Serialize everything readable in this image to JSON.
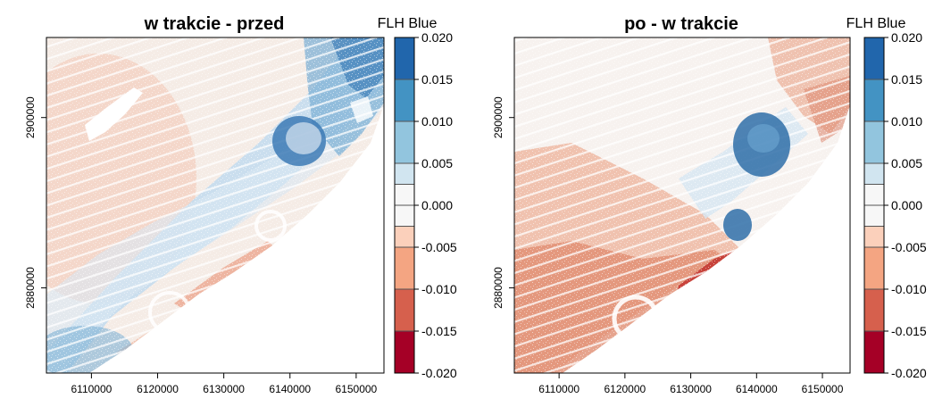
{
  "chart_data": [
    {
      "type": "heatmap",
      "title": "w trakcie - przed",
      "legend_title": "FLH Blue",
      "x_ticks": [
        "6110000",
        "6120000",
        "6130000",
        "6140000",
        "6150000"
      ],
      "x_tick_values": [
        6110000,
        6120000,
        6130000,
        6140000,
        6150000
      ],
      "y_ticks": [
        "2880000",
        "2900000"
      ],
      "y_tick_values": [
        2880000,
        2900000
      ],
      "xlim": [
        6103200,
        6154200
      ],
      "ylim": [
        2870000,
        2909400
      ],
      "legend_breaks": [
        -0.02,
        -0.015,
        -0.01,
        -0.005,
        -0.0025,
        0,
        0.0025,
        0.005,
        0.01,
        0.015,
        0.02
      ],
      "legend_labels": [
        "0.020",
        "0.015",
        "0.010",
        "0.005",
        "0.000",
        "-0.005",
        "-0.010",
        "-0.015",
        "-0.020"
      ],
      "legend_label_values": [
        0.02,
        0.015,
        0.01,
        0.005,
        0,
        -0.005,
        -0.01,
        -0.015,
        -0.02
      ],
      "colors": [
        "#a50026",
        "#d6604d",
        "#f4a582",
        "#fbd0bb",
        "#f7f7f7",
        "#f7f7f7",
        "#d1e5f0",
        "#92c5de",
        "#4393c3",
        "#2166ac"
      ]
    },
    {
      "type": "heatmap",
      "title": "po - w trakcie",
      "legend_title": "FLH Blue",
      "x_ticks": [
        "6110000",
        "6120000",
        "6130000",
        "6140000",
        "6150000"
      ],
      "x_tick_values": [
        6110000,
        6120000,
        6130000,
        6140000,
        6150000
      ],
      "y_ticks": [
        "2880000",
        "2900000"
      ],
      "y_tick_values": [
        2880000,
        2900000
      ],
      "xlim": [
        6103200,
        6154200
      ],
      "ylim": [
        2870000,
        2909400
      ],
      "legend_breaks": [
        -0.02,
        -0.015,
        -0.01,
        -0.005,
        -0.0025,
        0,
        0.0025,
        0.005,
        0.01,
        0.015,
        0.02
      ],
      "legend_labels": [
        "0.020",
        "0.015",
        "0.010",
        "0.005",
        "0.000",
        "-0.005",
        "-0.010",
        "-0.015",
        "-0.020"
      ],
      "legend_label_values": [
        0.02,
        0.015,
        0.01,
        0.005,
        0,
        -0.005,
        -0.01,
        -0.015,
        -0.02
      ],
      "colors": [
        "#a50026",
        "#d6604d",
        "#f4a582",
        "#fbd0bb",
        "#f7f7f7",
        "#f7f7f7",
        "#d1e5f0",
        "#92c5de",
        "#4393c3",
        "#2166ac"
      ]
    }
  ]
}
